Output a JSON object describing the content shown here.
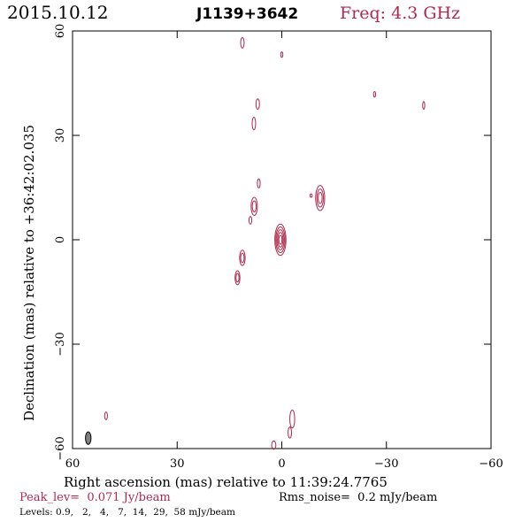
{
  "chart_data": {
    "type": "contour",
    "date": "2015.10.12",
    "source": "J1139+3642",
    "freq_label": "Freq: 4.3 GHz",
    "xlabel": "Right ascension (mas) relative to 11:39:24.7765",
    "ylabel": "Declination (mas) relative to +36:42:02.035",
    "xlim": [
      60,
      -60
    ],
    "ylim": [
      -60,
      60
    ],
    "xticks": [
      60,
      30,
      0,
      -30,
      -60
    ],
    "yticks": [
      -60,
      -30,
      0,
      30,
      60
    ],
    "tick_labels": {
      "x": [
        "60",
        "30",
        "0",
        "−30",
        "−60"
      ],
      "y": [
        "−60",
        "−30",
        "0",
        "30",
        "60"
      ]
    },
    "peak_label": "Peak_lev=  0.071 Jy/beam",
    "rms_label": "Rms_noise=  0.2 mJy/beam",
    "levels_label": "Levels: 0.9,   2,   4,   7,  14,  29,  58 mJy/beam",
    "levels_mjy": [
      0.9,
      2,
      4,
      7,
      14,
      29,
      58
    ],
    "peak_jy_per_beam": 0.071,
    "rms_mjy_per_beam": 0.2,
    "contour_color": "#b0284c",
    "components": [
      {
        "name": "core",
        "x": 0.4,
        "y": 0,
        "rx": 1.6,
        "ry": 4.5,
        "rings": 5
      },
      {
        "name": "knot-east",
        "x": -11,
        "y": 12,
        "rx": 1.3,
        "ry": 3.6,
        "rings": 3
      },
      {
        "name": "knot-a",
        "x": 7.9,
        "y": 9.6,
        "rx": 0.9,
        "ry": 2.6,
        "rings": 2
      },
      {
        "name": "knot-b",
        "x": 11.3,
        "y": -5.2,
        "rx": 0.8,
        "ry": 2.2,
        "rings": 2
      },
      {
        "name": "knot-c",
        "x": 12.7,
        "y": -10.9,
        "rx": 0.7,
        "ry": 2.0,
        "rings": 2
      },
      {
        "name": "knot-d",
        "x": -3,
        "y": -51.5,
        "rx": 0.7,
        "ry": 2.6,
        "rings": 1
      },
      {
        "name": "knot-e",
        "x": -2.3,
        "y": -55.4,
        "rx": 0.5,
        "ry": 1.6,
        "rings": 1
      },
      {
        "name": "blob-1",
        "x": 11.3,
        "y": 56.6,
        "rx": 0.5,
        "ry": 1.5,
        "rings": 1
      },
      {
        "name": "blob-2",
        "x": 0,
        "y": 53.2,
        "rx": 0.3,
        "ry": 0.8,
        "rings": 1
      },
      {
        "name": "blob-3",
        "x": 6.9,
        "y": 39,
        "rx": 0.5,
        "ry": 1.5,
        "rings": 1
      },
      {
        "name": "blob-4",
        "x": 8,
        "y": 33.4,
        "rx": 0.5,
        "ry": 1.8,
        "rings": 1
      },
      {
        "name": "blob-5",
        "x": 6.6,
        "y": 16.2,
        "rx": 0.4,
        "ry": 1.3,
        "rings": 1
      },
      {
        "name": "blob-6",
        "x": 9,
        "y": 5.6,
        "rx": 0.4,
        "ry": 1.1,
        "rings": 1
      },
      {
        "name": "blob-7",
        "x": -26.6,
        "y": 41.8,
        "rx": 0.3,
        "ry": 0.8,
        "rings": 1
      },
      {
        "name": "blob-8",
        "x": -40.7,
        "y": 38.6,
        "rx": 0.3,
        "ry": 1.1,
        "rings": 1
      },
      {
        "name": "blob-9",
        "x": 50.4,
        "y": -50.6,
        "rx": 0.4,
        "ry": 1.1,
        "rings": 1
      },
      {
        "name": "blob-10",
        "x": 2.3,
        "y": -59,
        "rx": 0.6,
        "ry": 1.2,
        "rings": 1
      },
      {
        "name": "blob-11",
        "x": -8.4,
        "y": 12.7,
        "rx": 0.3,
        "ry": 0.5,
        "rings": 1
      }
    ],
    "beam": {
      "x": 55.5,
      "y": -57,
      "rx": 0.8,
      "ry": 1.8,
      "fill": "#808080"
    }
  }
}
